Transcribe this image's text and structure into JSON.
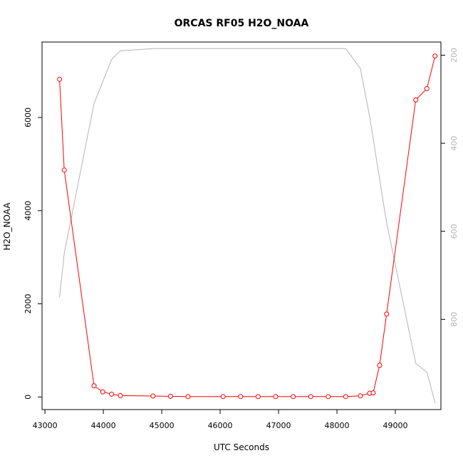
{
  "chart_data": {
    "type": "line",
    "title": "ORCAS RF05 H2O_NOAA",
    "xlabel": "UTC Seconds",
    "ylabel": "H2O_NOAA",
    "xlim": [
      42950,
      49780
    ],
    "ylim": [
      -270,
      7620
    ],
    "y2lim": [
      1005,
      170
    ],
    "y2_inverted": true,
    "xticks": [
      43000,
      44000,
      45000,
      46000,
      47000,
      48000,
      49000
    ],
    "yticks": [
      0,
      2000,
      4000,
      6000
    ],
    "y2ticks": [
      200,
      400,
      600,
      800
    ],
    "series": [
      {
        "role": "primary",
        "style": "line+open-circles",
        "color": "#ff0000",
        "x": [
          43250,
          43330,
          43840,
          43990,
          44140,
          44290,
          44850,
          45150,
          45450,
          46050,
          46350,
          46650,
          46950,
          47250,
          47550,
          47850,
          48150,
          48400,
          48560,
          48620,
          48730,
          48850,
          49350,
          49540,
          49680
        ],
        "y": [
          6820,
          4870,
          240,
          110,
          60,
          30,
          20,
          15,
          10,
          10,
          10,
          8,
          8,
          8,
          8,
          8,
          10,
          25,
          80,
          90,
          680,
          1780,
          6380,
          6620,
          7320
        ]
      },
      {
        "role": "secondary",
        "style": "line",
        "color": "#b4b4b4",
        "x": [
          43250,
          43330,
          43840,
          44140,
          44290,
          44850,
          48150,
          48400,
          48560,
          48850,
          49350,
          49540,
          49680
        ],
        "y": [
          750,
          650,
          310,
          210,
          190,
          185,
          185,
          230,
          340,
          580,
          900,
          920,
          990
        ]
      }
    ]
  }
}
